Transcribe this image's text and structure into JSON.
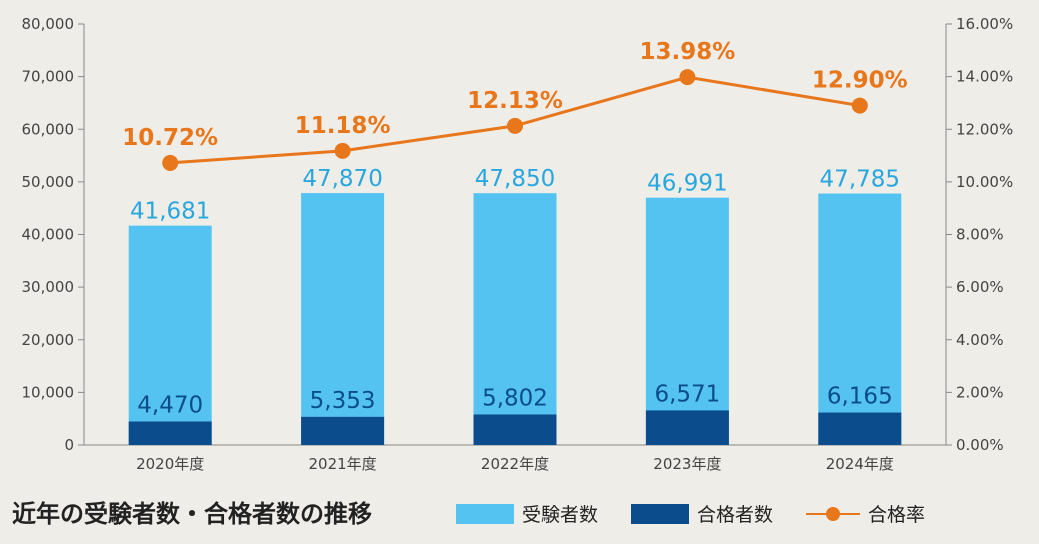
{
  "chart_data": {
    "type": "bar",
    "categories": [
      "2020年度",
      "2021年度",
      "2022年度",
      "2023年度",
      "2024年度"
    ],
    "series": [
      {
        "name": "受験者数",
        "type": "bar",
        "axis": "left",
        "values": [
          41681,
          47870,
          47850,
          46991,
          47785
        ],
        "labels": [
          "41,681",
          "47,870",
          "47,850",
          "46,991",
          "47,785"
        ]
      },
      {
        "name": "合格者数",
        "type": "bar",
        "axis": "left",
        "values": [
          4470,
          5353,
          5802,
          6571,
          6165
        ],
        "labels": [
          "4,470",
          "5,353",
          "5,802",
          "6,571",
          "6,165"
        ]
      },
      {
        "name": "合格率",
        "type": "line",
        "axis": "right",
        "values": [
          10.72,
          11.18,
          12.13,
          13.98,
          12.9
        ],
        "labels": [
          "10.72%",
          "11.18%",
          "12.13%",
          "13.98%",
          "12.90%"
        ]
      }
    ],
    "ylim": [
      0,
      80000
    ],
    "y2lim": [
      0,
      16
    ],
    "yticks": [
      "0",
      "10,000",
      "20,000",
      "30,000",
      "40,000",
      "50,000",
      "60,000",
      "70,000",
      "80,000"
    ],
    "y2ticks": [
      "0.00%",
      "2.00%",
      "4.00%",
      "6.00%",
      "8.00%",
      "10.00%",
      "12.00%",
      "14.00%",
      "16.00%"
    ],
    "grid": false,
    "legend": "bottom-right",
    "colors": {
      "applicants": "#55c3f1",
      "passers": "#0b4d8c",
      "rate": "#e8761b"
    }
  },
  "footer": {
    "title": "近年の受験者数・合格者数の推移",
    "legend_applicants": "受験者数",
    "legend_passers": "合格者数",
    "legend_rate": "合格率"
  }
}
